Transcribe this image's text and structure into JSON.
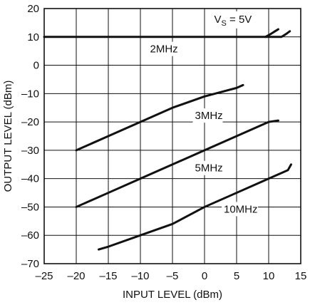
{
  "chart_data": {
    "type": "line",
    "xlabel": "INPUT LEVEL (dBm)",
    "ylabel": "OUTPUT LEVEL (dBm)",
    "xlim": [
      -25,
      15
    ],
    "ylim": [
      -70,
      20
    ],
    "x_ticks": [
      -25,
      -20,
      -15,
      -10,
      -5,
      0,
      5,
      10,
      15
    ],
    "y_ticks": [
      20,
      10,
      0,
      -10,
      -20,
      -30,
      -40,
      -50,
      -60,
      -70
    ],
    "grid": true,
    "annotation": {
      "text": "V",
      "subscript": "S",
      "suffix": " = 5V"
    },
    "series": [
      {
        "name": "2MHz",
        "x": [
          -25,
          -20,
          -15,
          -10,
          -5,
          0,
          5,
          9.5,
          10.3,
          11,
          11.5
        ],
        "y": [
          10,
          10,
          10,
          10,
          10,
          10,
          10,
          10,
          11,
          12,
          12.7
        ]
      },
      {
        "name": "2MHz",
        "x": [
          9.5,
          12,
          12.7,
          13.3
        ],
        "y": [
          10,
          10,
          11,
          12
        ]
      },
      {
        "name": "3MHz",
        "x": [
          -20,
          -15,
          -10,
          -5,
          0,
          5,
          6
        ],
        "y": [
          -30,
          -25,
          -20,
          -15,
          -11,
          -8,
          -7
        ]
      },
      {
        "name": "5MHz",
        "x": [
          -20,
          -15,
          -10,
          -5,
          0,
          5,
          10,
          11.5
        ],
        "y": [
          -50,
          -45,
          -40,
          -35,
          -30,
          -25,
          -20,
          -19.5
        ]
      },
      {
        "name": "10MHz",
        "x": [
          -16.5,
          -15,
          -10,
          -5,
          0,
          5,
          10,
          12,
          13,
          13.5
        ],
        "y": [
          -65,
          -64,
          -60,
          -56,
          -50,
          -45,
          -40,
          -38,
          -37,
          -35
        ]
      }
    ],
    "series_labels": [
      {
        "text": "2MHz",
        "x": -8.5,
        "y": 4.5
      },
      {
        "text": "3MHz",
        "x": -1.5,
        "y": -19
      },
      {
        "text": "5MHz",
        "x": -1.5,
        "y": -37.5
      },
      {
        "text": "10MHz",
        "x": 3,
        "y": -52
      }
    ],
    "annotation_pos": {
      "x": 1.5,
      "y": 15
    }
  }
}
